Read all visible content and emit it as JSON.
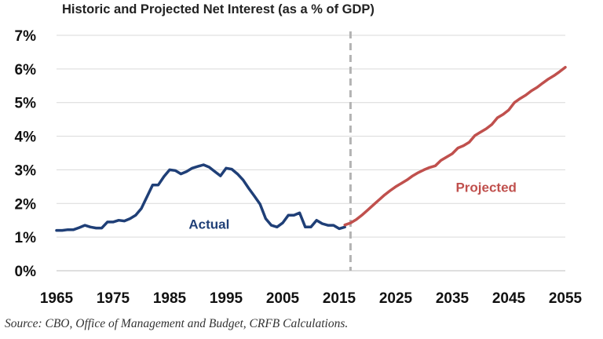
{
  "chart_data": {
    "type": "line",
    "title": "Historic and Projected Net Interest (as a % of GDP)",
    "xlabel": "",
    "ylabel": "",
    "xlim": [
      1965,
      2055
    ],
    "ylim": [
      0,
      7
    ],
    "x_ticks": [
      "1965",
      "1975",
      "1985",
      "1995",
      "2005",
      "2015",
      "2025",
      "2035",
      "2045",
      "2055"
    ],
    "y_ticks": [
      "0%",
      "1%",
      "2%",
      "3%",
      "4%",
      "5%",
      "6%",
      "7%"
    ],
    "grid": true,
    "divider_year": 2017,
    "series": [
      {
        "name": "Actual",
        "color": "#1f3f77",
        "x": [
          1965,
          1966,
          1967,
          1968,
          1969,
          1970,
          1971,
          1972,
          1973,
          1974,
          1975,
          1976,
          1977,
          1978,
          1979,
          1980,
          1981,
          1982,
          1983,
          1984,
          1985,
          1986,
          1987,
          1988,
          1989,
          1990,
          1991,
          1992,
          1993,
          1994,
          1995,
          1996,
          1997,
          1998,
          1999,
          2000,
          2001,
          2002,
          2003,
          2004,
          2005,
          2006,
          2007,
          2008,
          2009,
          2010,
          2011,
          2012,
          2013,
          2014,
          2015,
          2016
        ],
        "y": [
          1.2,
          1.2,
          1.22,
          1.22,
          1.28,
          1.35,
          1.3,
          1.27,
          1.27,
          1.45,
          1.45,
          1.5,
          1.48,
          1.55,
          1.65,
          1.85,
          2.2,
          2.55,
          2.55,
          2.8,
          3.0,
          2.98,
          2.88,
          2.95,
          3.05,
          3.1,
          3.15,
          3.08,
          2.95,
          2.82,
          3.05,
          3.02,
          2.88,
          2.7,
          2.45,
          2.22,
          1.98,
          1.55,
          1.35,
          1.3,
          1.42,
          1.65,
          1.65,
          1.72,
          1.3,
          1.3,
          1.5,
          1.4,
          1.35,
          1.35,
          1.25,
          1.3
        ]
      },
      {
        "name": "Projected",
        "color": "#c0504d",
        "x": [
          2016,
          2017,
          2018,
          2019,
          2020,
          2021,
          2022,
          2023,
          2024,
          2025,
          2026,
          2027,
          2028,
          2029,
          2030,
          2031,
          2032,
          2033,
          2034,
          2035,
          2036,
          2037,
          2038,
          2039,
          2040,
          2041,
          2042,
          2043,
          2044,
          2045,
          2046,
          2047,
          2048,
          2049,
          2050,
          2051,
          2052,
          2053,
          2054,
          2055
        ],
        "y": [
          1.36,
          1.42,
          1.52,
          1.65,
          1.8,
          1.95,
          2.1,
          2.25,
          2.38,
          2.5,
          2.6,
          2.7,
          2.82,
          2.92,
          3.0,
          3.07,
          3.12,
          3.28,
          3.38,
          3.48,
          3.65,
          3.72,
          3.82,
          4.02,
          4.12,
          4.22,
          4.35,
          4.55,
          4.65,
          4.78,
          5.0,
          5.12,
          5.22,
          5.35,
          5.45,
          5.58,
          5.7,
          5.8,
          5.92,
          6.05
        ]
      }
    ],
    "annotations": [
      {
        "text": "Actual",
        "x": 1992,
        "y": 1.25,
        "color": "#1f3f77"
      },
      {
        "text": "Projected",
        "x": 2041,
        "y": 2.35,
        "color": "#c0504d"
      }
    ]
  },
  "source_note": "Source: CBO, Office of Management and Budget, CRFB Calculations."
}
